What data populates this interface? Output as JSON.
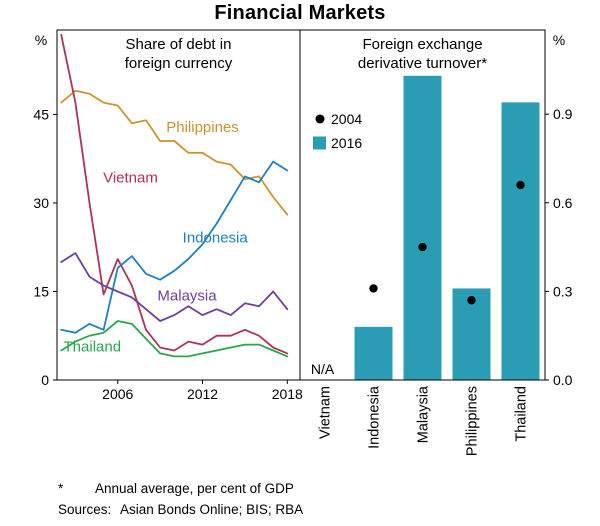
{
  "title": "Financial Markets",
  "footnotes": {
    "star_marker": "*",
    "star_text": "Annual average, per cent of GDP",
    "sources_label": "Sources:",
    "sources_text": "Asian Bonds Online; BIS; RBA"
  },
  "chart_data": [
    {
      "id": "left",
      "type": "line",
      "title": "Share of debt in foreign currency",
      "title_lines": [
        "Share of debt in",
        "foreign currency"
      ],
      "unit": "%",
      "xlim": [
        2001.7,
        2018.9
      ],
      "ylim": [
        0,
        59.3
      ],
      "xticks": [
        2006,
        2012,
        2018
      ],
      "yticks": [
        0,
        15,
        30,
        45
      ],
      "x": [
        2002,
        2003,
        2004,
        2005,
        2006,
        2007,
        2008,
        2009,
        2010,
        2011,
        2012,
        2013,
        2014,
        2015,
        2016,
        2017,
        2018
      ],
      "series": [
        {
          "name": "Philippines",
          "color": "#C8952F",
          "label_at": {
            "x": 2012,
            "y": 42
          },
          "values": [
            47,
            49,
            48.5,
            47,
            46.5,
            43.5,
            44,
            40.5,
            40.5,
            38.5,
            38.5,
            37,
            36.5,
            34,
            34.5,
            31,
            28
          ]
        },
        {
          "name": "Vietnam",
          "color": "#AB3456",
          "label_at": {
            "x": 2006.9,
            "y": 33.5
          },
          "values": [
            58.5,
            47,
            30,
            14.5,
            20.5,
            16,
            8.5,
            5.5,
            5,
            6.5,
            6,
            7.5,
            7.5,
            8.5,
            7.5,
            5.5,
            4.5
          ]
        },
        {
          "name": "Indonesia",
          "color": "#1F7EC4",
          "label_at": {
            "x": 2012.9,
            "y": 23.3
          },
          "values": [
            8.5,
            8,
            9.5,
            8.5,
            19,
            21,
            18,
            17,
            18.5,
            20.5,
            23,
            26.5,
            30.5,
            34.5,
            33.5,
            37,
            35.5
          ]
        },
        {
          "name": "Malaysia",
          "color": "#6A3FA0",
          "label_at": {
            "x": 2010.9,
            "y": 13.5
          },
          "values": [
            20,
            21.5,
            17.5,
            16,
            15,
            14,
            12,
            10,
            11,
            12.5,
            11,
            12,
            11,
            13,
            12.5,
            15,
            12
          ]
        },
        {
          "name": "Thailand",
          "color": "#2CA44E",
          "label_at": {
            "x": 2004.2,
            "y": 4.8
          },
          "values": [
            5,
            6.5,
            7.5,
            8,
            10,
            9.5,
            7,
            4.5,
            4,
            4,
            4.5,
            5,
            5.5,
            6,
            6,
            5,
            4
          ]
        }
      ]
    },
    {
      "id": "right",
      "type": "bar",
      "title": "Foreign exchange derivative turnover*",
      "title_lines": [
        "Foreign exchange",
        "derivative turnover*"
      ],
      "unit": "%",
      "ylim": [
        0,
        1.185
      ],
      "yticks": [
        "0.0",
        "0.3",
        "0.6",
        "0.9"
      ],
      "categories": [
        "Vietnam",
        "Indonesia",
        "Malaysia",
        "Philippines",
        "Thailand"
      ],
      "na_label": "N/A",
      "series": [
        {
          "name": "2004",
          "style": "dot",
          "color": "#000000",
          "values": [
            null,
            0.31,
            0.45,
            0.27,
            0.66
          ]
        },
        {
          "name": "2016",
          "style": "bar",
          "color": "#2A9DB4",
          "values": [
            null,
            0.18,
            1.03,
            0.31,
            0.94
          ]
        }
      ]
    }
  ]
}
